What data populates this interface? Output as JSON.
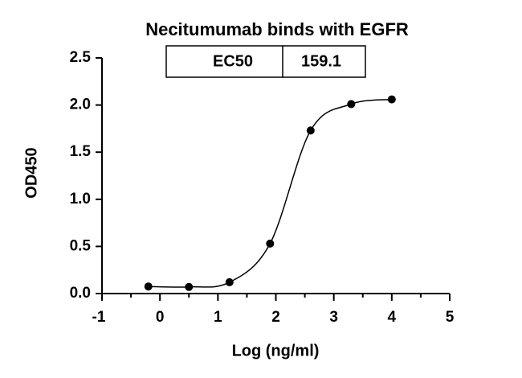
{
  "chart_data": {
    "type": "scatter",
    "title": "Necitumumab binds with EGFR",
    "x_label": "Log (ng/ml)",
    "y_label": "OD450",
    "x": [
      -0.2,
      0.5,
      1.2,
      1.9,
      2.6,
      3.3,
      4.0
    ],
    "values": [
      0.075,
      0.07,
      0.12,
      0.53,
      1.73,
      2.01,
      2.06
    ],
    "color": "#000000",
    "fit_curve": true,
    "xlim": [
      -1,
      5
    ],
    "xticks": [
      -1,
      0,
      1,
      2,
      3,
      4,
      5
    ],
    "xminorticks": [
      -0.5,
      0.5,
      1.5,
      2.5,
      3.5,
      4.5
    ],
    "ylim": [
      0,
      2.5
    ],
    "yticks": [
      {
        "value": 0,
        "label": "0.0"
      },
      0.5,
      {
        "value": 1,
        "label": "1.0"
      },
      1.5,
      {
        "value": 2,
        "label": "2.0"
      },
      2.5
    ],
    "ec50": {
      "label": "EC50",
      "value": 159.1
    }
  }
}
